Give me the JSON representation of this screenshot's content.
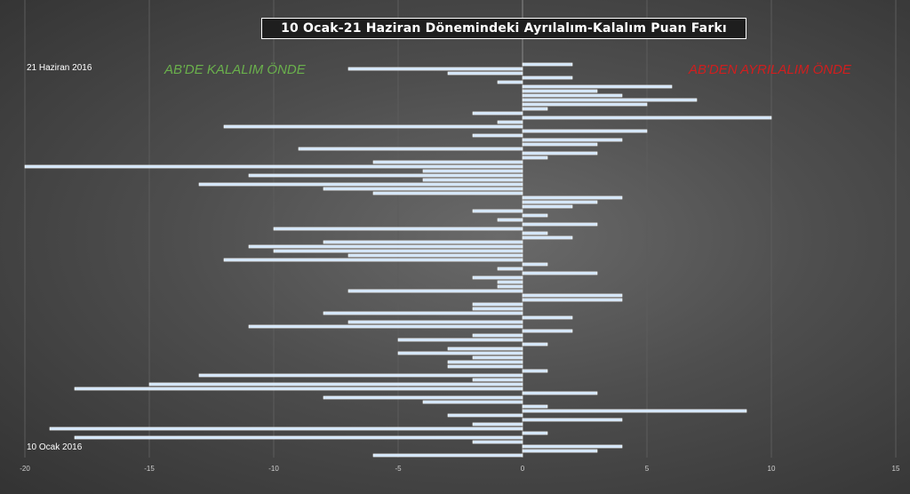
{
  "chart_data": {
    "type": "bar",
    "orientation": "horizontal",
    "title": "10 Ocak-21 Haziran Dönemindeki Ayrılalım-Kalalım Puan Farkı",
    "annotations": {
      "left": {
        "text": "AB'DE KALALIM ÖNDE",
        "color": "#6ab04c"
      },
      "right": {
        "text": "AB'DEN AYRILALIM ÖNDE",
        "color": "#d11e1e"
      }
    },
    "date_labels": {
      "top": "21 Haziran 2016",
      "bottom": "10 Ocak 2016"
    },
    "xlim": [
      -20,
      15
    ],
    "xticks": [
      -20,
      -15,
      -10,
      -5,
      0,
      5,
      10,
      15
    ],
    "grid": "vertical",
    "bar_color": "#cfe3f7",
    "values": [
      2,
      -7,
      -3,
      2,
      -1,
      6,
      3,
      4,
      7,
      5,
      1,
      -2,
      10,
      -1,
      -12,
      5,
      -2,
      4,
      3,
      -9,
      3,
      1,
      -6,
      -20,
      -4,
      -11,
      -4,
      -13,
      -8,
      -6,
      4,
      3,
      2,
      -2,
      1,
      -1,
      3,
      -10,
      1,
      2,
      -8,
      -11,
      -10,
      -7,
      -12,
      1,
      -1,
      3,
      -2,
      -1,
      -1,
      -7,
      4,
      4,
      -2,
      -2,
      -8,
      2,
      -7,
      -11,
      2,
      -2,
      -5,
      1,
      -3,
      -5,
      -2,
      -3,
      -3,
      1,
      -13,
      -2,
      -15,
      -18,
      3,
      -8,
      -4,
      1,
      9,
      -3,
      4,
      -2,
      -19,
      1,
      -18,
      -2,
      4,
      3,
      -6
    ]
  }
}
